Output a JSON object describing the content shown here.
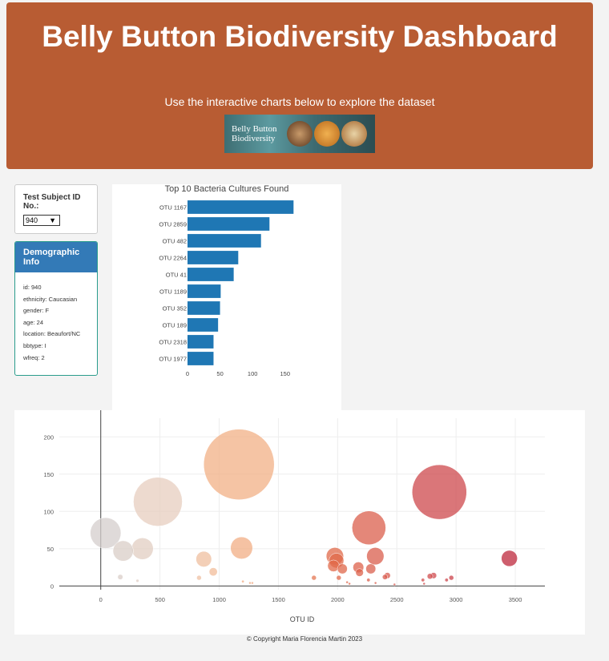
{
  "header": {
    "title": "Belly Button Biodiversity Dashboard",
    "subtitle": "Use the interactive charts below to explore the dataset",
    "banner_text": "Belly Button Biodiversity",
    "color": "#b85c33"
  },
  "selector": {
    "label": "Test Subject ID No.:",
    "value": "940"
  },
  "demographics": {
    "title": "Demographic Info",
    "rows": [
      "id: 940",
      "ethnicity: Caucasian",
      "gender: F",
      "age: 24",
      "location: Beaufort/NC",
      "bbtype: I",
      "wfreq: 2"
    ]
  },
  "footer": {
    "text": "© Copyright Maria Florencia Martin 2023"
  },
  "chart_data": [
    {
      "type": "bar",
      "orientation": "horizontal",
      "title": "Top 10 Bacteria Cultures Found",
      "categories": [
        "OTU 1167",
        "OTU 2859",
        "OTU 482",
        "OTU 2264",
        "OTU 41",
        "OTU 1189",
        "OTU 352",
        "OTU 189",
        "OTU 2318",
        "OTU 1977"
      ],
      "values": [
        163,
        126,
        113,
        78,
        71,
        51,
        50,
        47,
        40,
        40
      ],
      "xlim": [
        0,
        170
      ],
      "xticks": [
        0,
        50,
        100,
        150
      ],
      "color": "#1f77b4"
    },
    {
      "type": "scatter",
      "variant": "bubble",
      "title": "",
      "xlabel": "OTU ID",
      "ylabel": "",
      "xlim": [
        -350,
        3750
      ],
      "ylim": [
        -5,
        225
      ],
      "xticks": [
        0,
        500,
        1000,
        1500,
        2000,
        2500,
        3000,
        3500
      ],
      "yticks": [
        0,
        50,
        100,
        150,
        200
      ],
      "points": [
        {
          "x": 41,
          "y": 71
        },
        {
          "x": 189,
          "y": 47
        },
        {
          "x": 352,
          "y": 50
        },
        {
          "x": 482,
          "y": 113
        },
        {
          "x": 1167,
          "y": 163
        },
        {
          "x": 1189,
          "y": 51
        },
        {
          "x": 870,
          "y": 36
        },
        {
          "x": 950,
          "y": 19
        },
        {
          "x": 165,
          "y": 12
        },
        {
          "x": 310,
          "y": 7
        },
        {
          "x": 830,
          "y": 11
        },
        {
          "x": 1200,
          "y": 6
        },
        {
          "x": 1280,
          "y": 4
        },
        {
          "x": 1260,
          "y": 4
        },
        {
          "x": 1800,
          "y": 11
        },
        {
          "x": 1977,
          "y": 40
        },
        {
          "x": 1965,
          "y": 27
        },
        {
          "x": 1990,
          "y": 34
        },
        {
          "x": 2010,
          "y": 11
        },
        {
          "x": 2040,
          "y": 23
        },
        {
          "x": 2080,
          "y": 5
        },
        {
          "x": 2100,
          "y": 3
        },
        {
          "x": 2175,
          "y": 25
        },
        {
          "x": 2185,
          "y": 18
        },
        {
          "x": 2264,
          "y": 78
        },
        {
          "x": 2280,
          "y": 23
        },
        {
          "x": 2318,
          "y": 40
        },
        {
          "x": 2260,
          "y": 8
        },
        {
          "x": 2320,
          "y": 4
        },
        {
          "x": 2400,
          "y": 12
        },
        {
          "x": 2420,
          "y": 14
        },
        {
          "x": 2480,
          "y": 2
        },
        {
          "x": 2720,
          "y": 8
        },
        {
          "x": 2730,
          "y": 3
        },
        {
          "x": 2780,
          "y": 13
        },
        {
          "x": 2810,
          "y": 14
        },
        {
          "x": 2859,
          "y": 126
        },
        {
          "x": 2920,
          "y": 8
        },
        {
          "x": 2960,
          "y": 11
        },
        {
          "x": 3450,
          "y": 37
        }
      ]
    }
  ]
}
